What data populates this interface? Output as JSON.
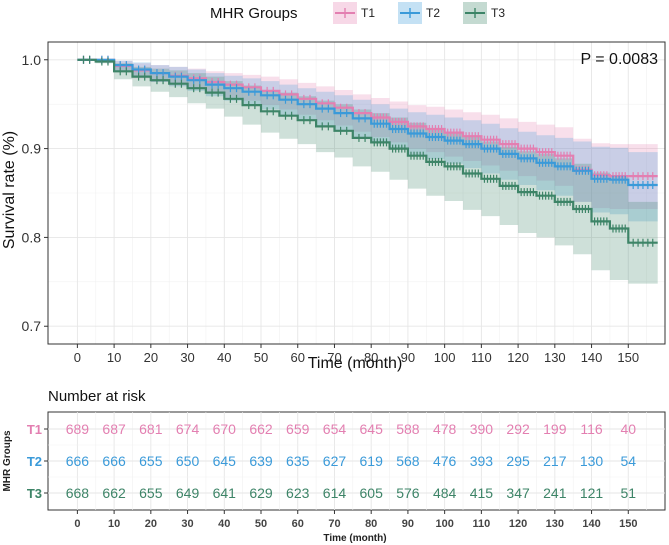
{
  "chart_data": {
    "type": "line",
    "subtype": "kaplan-meier",
    "legend": {
      "title": "MHR Groups",
      "position": "top",
      "entries": [
        "T1",
        "T2",
        "T3"
      ]
    },
    "colors": {
      "T1": "#e37fb1",
      "T2": "#3a9ad9",
      "T3": "#3d8467"
    },
    "pvalue_label": "P = 0.0083",
    "ylabel": "Survival rate (%)",
    "xlabel": "Time (month)",
    "xlim": [
      -8,
      160
    ],
    "ylim": [
      0.68,
      1.02
    ],
    "x_ticks": [
      0,
      10,
      20,
      30,
      40,
      50,
      60,
      70,
      80,
      90,
      100,
      110,
      120,
      130,
      140,
      150
    ],
    "y_ticks": [
      0.7,
      0.8,
      0.9,
      1.0
    ],
    "y_tick_labels": [
      "0.7",
      "0.8",
      "0.9",
      "1.0"
    ],
    "series": [
      {
        "name": "T1",
        "x": [
          0,
          5,
          10,
          15,
          20,
          25,
          30,
          35,
          40,
          45,
          50,
          55,
          60,
          65,
          70,
          75,
          80,
          85,
          90,
          95,
          100,
          105,
          110,
          115,
          120,
          125,
          130,
          135,
          140,
          145,
          150,
          158
        ],
        "y": [
          1.0,
          1.0,
          0.993,
          0.988,
          0.985,
          0.982,
          0.979,
          0.975,
          0.972,
          0.969,
          0.965,
          0.961,
          0.956,
          0.951,
          0.946,
          0.94,
          0.935,
          0.93,
          0.925,
          0.922,
          0.918,
          0.914,
          0.91,
          0.905,
          0.9,
          0.896,
          0.892,
          0.876,
          0.87,
          0.869,
          0.869,
          0.869
        ],
        "ci_low": [
          1.0,
          0.999,
          0.986,
          0.979,
          0.975,
          0.971,
          0.967,
          0.962,
          0.958,
          0.954,
          0.949,
          0.944,
          0.938,
          0.932,
          0.926,
          0.919,
          0.913,
          0.907,
          0.9,
          0.896,
          0.891,
          0.886,
          0.881,
          0.875,
          0.869,
          0.864,
          0.858,
          0.84,
          0.833,
          0.832,
          0.832,
          0.832
        ],
        "ci_high": [
          1.0,
          1.0,
          0.999,
          0.996,
          0.994,
          0.992,
          0.99,
          0.987,
          0.985,
          0.983,
          0.981,
          0.978,
          0.974,
          0.97,
          0.966,
          0.961,
          0.957,
          0.953,
          0.949,
          0.947,
          0.944,
          0.941,
          0.938,
          0.934,
          0.93,
          0.927,
          0.924,
          0.911,
          0.906,
          0.905,
          0.905,
          0.905
        ]
      },
      {
        "name": "T2",
        "x": [
          0,
          5,
          10,
          15,
          20,
          25,
          30,
          35,
          40,
          45,
          50,
          55,
          60,
          65,
          70,
          75,
          80,
          85,
          90,
          95,
          100,
          105,
          110,
          115,
          120,
          125,
          130,
          135,
          140,
          145,
          150,
          158
        ],
        "y": [
          1.0,
          1.0,
          0.994,
          0.989,
          0.985,
          0.981,
          0.977,
          0.972,
          0.968,
          0.964,
          0.96,
          0.955,
          0.95,
          0.945,
          0.94,
          0.934,
          0.928,
          0.922,
          0.917,
          0.913,
          0.909,
          0.905,
          0.9,
          0.894,
          0.889,
          0.884,
          0.88,
          0.875,
          0.866,
          0.865,
          0.859,
          0.859
        ],
        "ci_low": [
          1.0,
          0.999,
          0.987,
          0.98,
          0.975,
          0.97,
          0.965,
          0.959,
          0.954,
          0.949,
          0.944,
          0.938,
          0.932,
          0.926,
          0.92,
          0.913,
          0.906,
          0.899,
          0.893,
          0.888,
          0.883,
          0.878,
          0.872,
          0.865,
          0.859,
          0.853,
          0.847,
          0.84,
          0.828,
          0.826,
          0.818,
          0.818
        ],
        "ci_high": [
          1.0,
          1.0,
          0.999,
          0.997,
          0.994,
          0.992,
          0.989,
          0.985,
          0.982,
          0.979,
          0.976,
          0.972,
          0.968,
          0.964,
          0.96,
          0.955,
          0.95,
          0.945,
          0.941,
          0.938,
          0.935,
          0.932,
          0.928,
          0.923,
          0.919,
          0.915,
          0.912,
          0.908,
          0.902,
          0.901,
          0.896,
          0.896
        ]
      },
      {
        "name": "T3",
        "x": [
          0,
          5,
          10,
          15,
          20,
          25,
          30,
          35,
          40,
          45,
          50,
          55,
          60,
          65,
          70,
          75,
          80,
          85,
          90,
          95,
          100,
          105,
          110,
          115,
          120,
          125,
          130,
          135,
          140,
          145,
          150,
          158
        ],
        "y": [
          1.0,
          0.998,
          0.987,
          0.981,
          0.977,
          0.973,
          0.968,
          0.963,
          0.956,
          0.949,
          0.942,
          0.937,
          0.932,
          0.925,
          0.92,
          0.912,
          0.907,
          0.9,
          0.892,
          0.885,
          0.88,
          0.872,
          0.866,
          0.858,
          0.851,
          0.847,
          0.84,
          0.832,
          0.818,
          0.81,
          0.794,
          0.794
        ],
        "ci_low": [
          1.0,
          0.996,
          0.978,
          0.97,
          0.964,
          0.958,
          0.951,
          0.945,
          0.936,
          0.927,
          0.918,
          0.911,
          0.905,
          0.896,
          0.89,
          0.88,
          0.874,
          0.865,
          0.855,
          0.847,
          0.841,
          0.831,
          0.824,
          0.814,
          0.805,
          0.8,
          0.791,
          0.781,
          0.763,
          0.752,
          0.748,
          0.748
        ],
        "ci_high": [
          1.0,
          1.0,
          0.996,
          0.992,
          0.99,
          0.988,
          0.985,
          0.981,
          0.976,
          0.971,
          0.966,
          0.963,
          0.959,
          0.954,
          0.95,
          0.944,
          0.94,
          0.935,
          0.929,
          0.923,
          0.919,
          0.913,
          0.908,
          0.902,
          0.897,
          0.894,
          0.889,
          0.883,
          0.873,
          0.868,
          0.84,
          0.84
        ]
      }
    ],
    "risk_table": {
      "title": "Number at risk",
      "ylabel": "MHR Groups",
      "xlabel": "Time (month)",
      "times": [
        0,
        10,
        20,
        30,
        40,
        50,
        60,
        70,
        80,
        90,
        100,
        110,
        120,
        130,
        140,
        150
      ],
      "rows": [
        {
          "group": "T1",
          "counts": [
            "689",
            "687",
            "681",
            "674",
            "670",
            "662",
            "659",
            "654",
            "645",
            "588",
            "478",
            "390",
            "292",
            "199",
            "116",
            "40"
          ]
        },
        {
          "group": "T2",
          "counts": [
            "666",
            "666",
            "655",
            "650",
            "645",
            "639",
            "635",
            "627",
            "619",
            "568",
            "476",
            "393",
            "295",
            "217",
            "130",
            "54"
          ]
        },
        {
          "group": "T3",
          "counts": [
            "668",
            "662",
            "655",
            "649",
            "641",
            "629",
            "623",
            "614",
            "605",
            "576",
            "484",
            "415",
            "347",
            "241",
            "121",
            "51"
          ]
        }
      ]
    }
  }
}
